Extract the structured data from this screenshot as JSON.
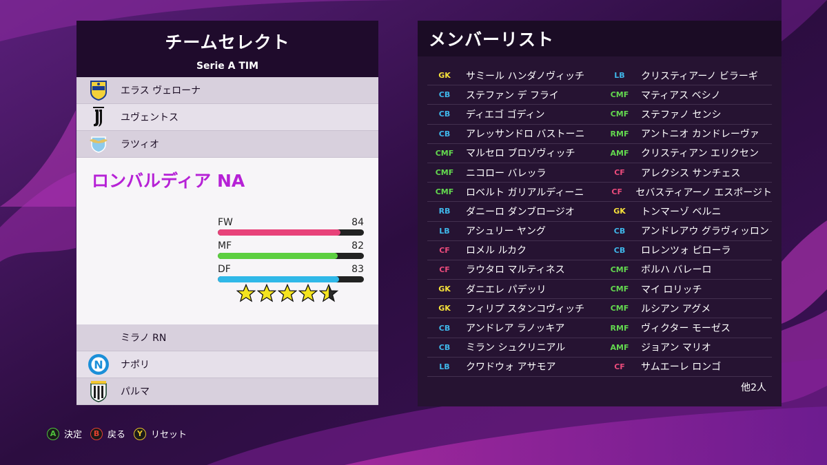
{
  "colors": {
    "pos_gk": "#f6e13a",
    "pos_df": "#3fb7ea",
    "pos_mf": "#63d84f",
    "pos_fw": "#ec4b7c",
    "selected_name": "#b621d6",
    "bar_fw": "#e8427a",
    "bar_mf": "#5dcf41",
    "bar_df": "#30b8e8"
  },
  "team_select": {
    "title": "チームセレクト",
    "league": "Serie A TIM",
    "teams_above": [
      {
        "name": "エラス ヴェローナ",
        "crest": "verona-crest-icon"
      },
      {
        "name": "ユヴェントス",
        "crest": "juventus-crest-icon"
      },
      {
        "name": "ラツィオ",
        "crest": "lazio-crest-icon"
      }
    ],
    "selected": {
      "name": "ロンバルディア NA",
      "stats": [
        {
          "label": "FW",
          "value": "84",
          "level": 0.84
        },
        {
          "label": "MF",
          "value": "82",
          "level": 0.82
        },
        {
          "label": "DF",
          "value": "83",
          "level": 0.83
        }
      ],
      "rating_stars": 4.5
    },
    "teams_below": [
      {
        "name": "ミラノ RN",
        "crest": ""
      },
      {
        "name": "ナポリ",
        "crest": "napoli-crest-icon"
      },
      {
        "name": "パルマ",
        "crest": "parma-crest-icon"
      }
    ]
  },
  "member_list": {
    "title": "メンバーリスト",
    "left_column": [
      {
        "pos": "GK",
        "name": "サミール ハンダノヴィッチ"
      },
      {
        "pos": "CB",
        "name": "ステファン デ フライ"
      },
      {
        "pos": "CB",
        "name": "ディエゴ ゴディン"
      },
      {
        "pos": "CB",
        "name": "アレッサンドロ バストーニ"
      },
      {
        "pos": "CMF",
        "name": "マルセロ ブロゾヴィッチ"
      },
      {
        "pos": "CMF",
        "name": "ニコロー バレッラ"
      },
      {
        "pos": "CMF",
        "name": "ロベルト ガリアルディーニ"
      },
      {
        "pos": "RB",
        "name": "ダニーロ ダンブロージオ"
      },
      {
        "pos": "LB",
        "name": "アシュリー ヤング"
      },
      {
        "pos": "CF",
        "name": "ロメル ルカク"
      },
      {
        "pos": "CF",
        "name": "ラウタロ マルティネス"
      },
      {
        "pos": "GK",
        "name": "ダニエレ パデッリ"
      },
      {
        "pos": "GK",
        "name": "フィリプ スタンコヴィッチ"
      },
      {
        "pos": "CB",
        "name": "アンドレア ラノッキア"
      },
      {
        "pos": "CB",
        "name": "ミラン シュクリニアル"
      },
      {
        "pos": "LB",
        "name": "クワドウォ アサモア"
      }
    ],
    "right_column": [
      {
        "pos": "LB",
        "name": "クリスティアーノ ビラーギ"
      },
      {
        "pos": "CMF",
        "name": "マティアス ベシノ"
      },
      {
        "pos": "CMF",
        "name": "ステファノ センシ"
      },
      {
        "pos": "RMF",
        "name": "アントニオ カンドレーヴァ"
      },
      {
        "pos": "AMF",
        "name": "クリスティアン エリクセン"
      },
      {
        "pos": "CF",
        "name": "アレクシス サンチェス"
      },
      {
        "pos": "CF",
        "name": "セバスティアーノ エスポージト"
      },
      {
        "pos": "GK",
        "name": "トンマーゾ ベルニ"
      },
      {
        "pos": "CB",
        "name": "アンドレアウ グラヴィッロン"
      },
      {
        "pos": "CB",
        "name": "ロレンツォ ピローラ"
      },
      {
        "pos": "CMF",
        "name": "ボルハ バレーロ"
      },
      {
        "pos": "CMF",
        "name": "マイ ロリッチ"
      },
      {
        "pos": "CMF",
        "name": "ルシアン アグメ"
      },
      {
        "pos": "RMF",
        "name": "ヴィクター モーゼス"
      },
      {
        "pos": "AMF",
        "name": "ジョアン マリオ"
      },
      {
        "pos": "CF",
        "name": "サムエーレ ロンゴ"
      }
    ],
    "others_count": "他2人"
  },
  "footer": {
    "controls": [
      {
        "button": "A",
        "label": "決定",
        "color": "#4fc23d"
      },
      {
        "button": "B",
        "label": "戻る",
        "color": "#e2412f"
      },
      {
        "button": "Y",
        "label": "リセット",
        "color": "#e9c22a"
      }
    ]
  }
}
